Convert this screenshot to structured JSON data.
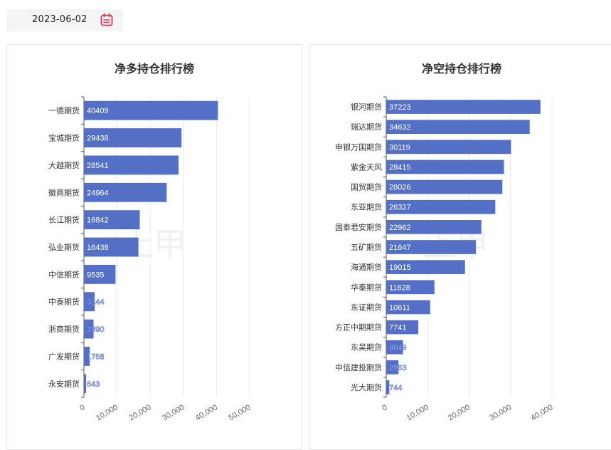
{
  "date_picker": {
    "value": "2023-06-02",
    "icon": "calendar-icon",
    "icon_color": "#e0364a"
  },
  "watermark": "上甲",
  "colors": {
    "bar": "#5470c6",
    "label_inside": "#ffffff",
    "label_outside": "#5470c6",
    "grid": "#e8e8ee",
    "axis_text": "#666666"
  },
  "chart_data": [
    {
      "type": "bar",
      "orientation": "horizontal",
      "title": "净多持仓排行榜",
      "categories": [
        "一德期货",
        "宝城期货",
        "大越期货",
        "徽商期货",
        "长江期货",
        "弘业期货",
        "中信期货",
        "中泰期货",
        "浙商期货",
        "广发期货",
        "永安期货"
      ],
      "values": [
        40409,
        29438,
        28541,
        24964,
        16842,
        16438,
        9535,
        3244,
        2890,
        1758,
        643
      ],
      "xlim": [
        0,
        50000
      ],
      "xticks": [
        "0",
        "10,000",
        "20,000",
        "30,000",
        "40,000",
        "50,000"
      ],
      "grid": true
    },
    {
      "type": "bar",
      "orientation": "horizontal",
      "title": "净空持仓排行榜",
      "categories": [
        "银河期货",
        "瑞达期货",
        "申银万国期货",
        "紫金天风",
        "国贸期货",
        "东亚期货",
        "国泰君安期货",
        "五矿期货",
        "海通期货",
        "华泰期货",
        "东证期货",
        "方正中期期货",
        "东吴期货",
        "中信建投期货",
        "光大期货"
      ],
      "values": [
        37223,
        34632,
        30119,
        28415,
        28026,
        26327,
        22962,
        21647,
        19015,
        11628,
        10611,
        7741,
        4049,
        2963,
        744
      ],
      "xlim": [
        0,
        40000
      ],
      "xticks": [
        "0",
        "10,000",
        "20,000",
        "30,000",
        "40,000"
      ],
      "grid": true
    }
  ]
}
